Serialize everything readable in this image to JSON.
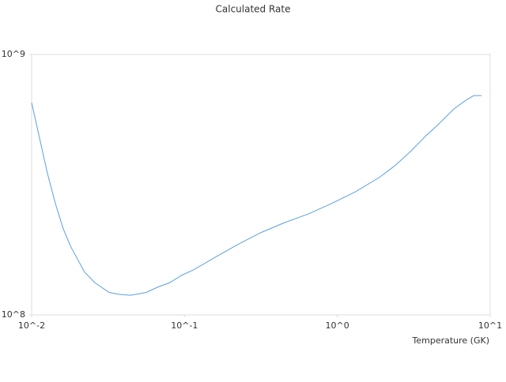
{
  "chart_data": {
    "type": "line",
    "title": "Calculated Rate",
    "x_label": "Temperature (GK)",
    "x": [
      0.01,
      0.01127,
      0.0127,
      0.0143,
      0.0161,
      0.0181,
      0.0222,
      0.0259,
      0.0321,
      0.0371,
      0.0443,
      0.0563,
      0.0671,
      0.0801,
      0.0961,
      0.1147,
      0.1548,
      0.2218,
      0.3157,
      0.4508,
      0.6439,
      0.9199,
      1.314,
      1.88,
      2.38,
      3.01,
      3.81,
      4.55,
      5.79,
      6.93,
      7.8,
      8.79
    ],
    "values": [
      653000000,
      477000000,
      349000000,
      268000000,
      214000000,
      182000000,
      146000000,
      133000000,
      122000000,
      120000000,
      119000000,
      122000000,
      128000000,
      133000000,
      142000000,
      149000000,
      165000000,
      186000000,
      207000000,
      226000000,
      244000000,
      268000000,
      297000000,
      337000000,
      374000000,
      424000000,
      488000000,
      537000000,
      618000000,
      667000000,
      695000000,
      695000000
    ],
    "color": "#5aa0e0",
    "xlim": [
      0.01,
      10
    ],
    "ylim": [
      100000000,
      1000000000
    ],
    "xticks": [
      {
        "value": 0.01,
        "label": "10^-2"
      },
      {
        "value": 0.1,
        "label": "10^-1"
      },
      {
        "value": 1,
        "label": "10^0"
      },
      {
        "value": 10,
        "label": "10^1"
      }
    ],
    "yticks": [
      {
        "value": 100000000,
        "label": "10^8"
      },
      {
        "value": 1000000000,
        "label": "10^9"
      }
    ],
    "xscale": "log",
    "yscale": "log",
    "grid": false
  }
}
